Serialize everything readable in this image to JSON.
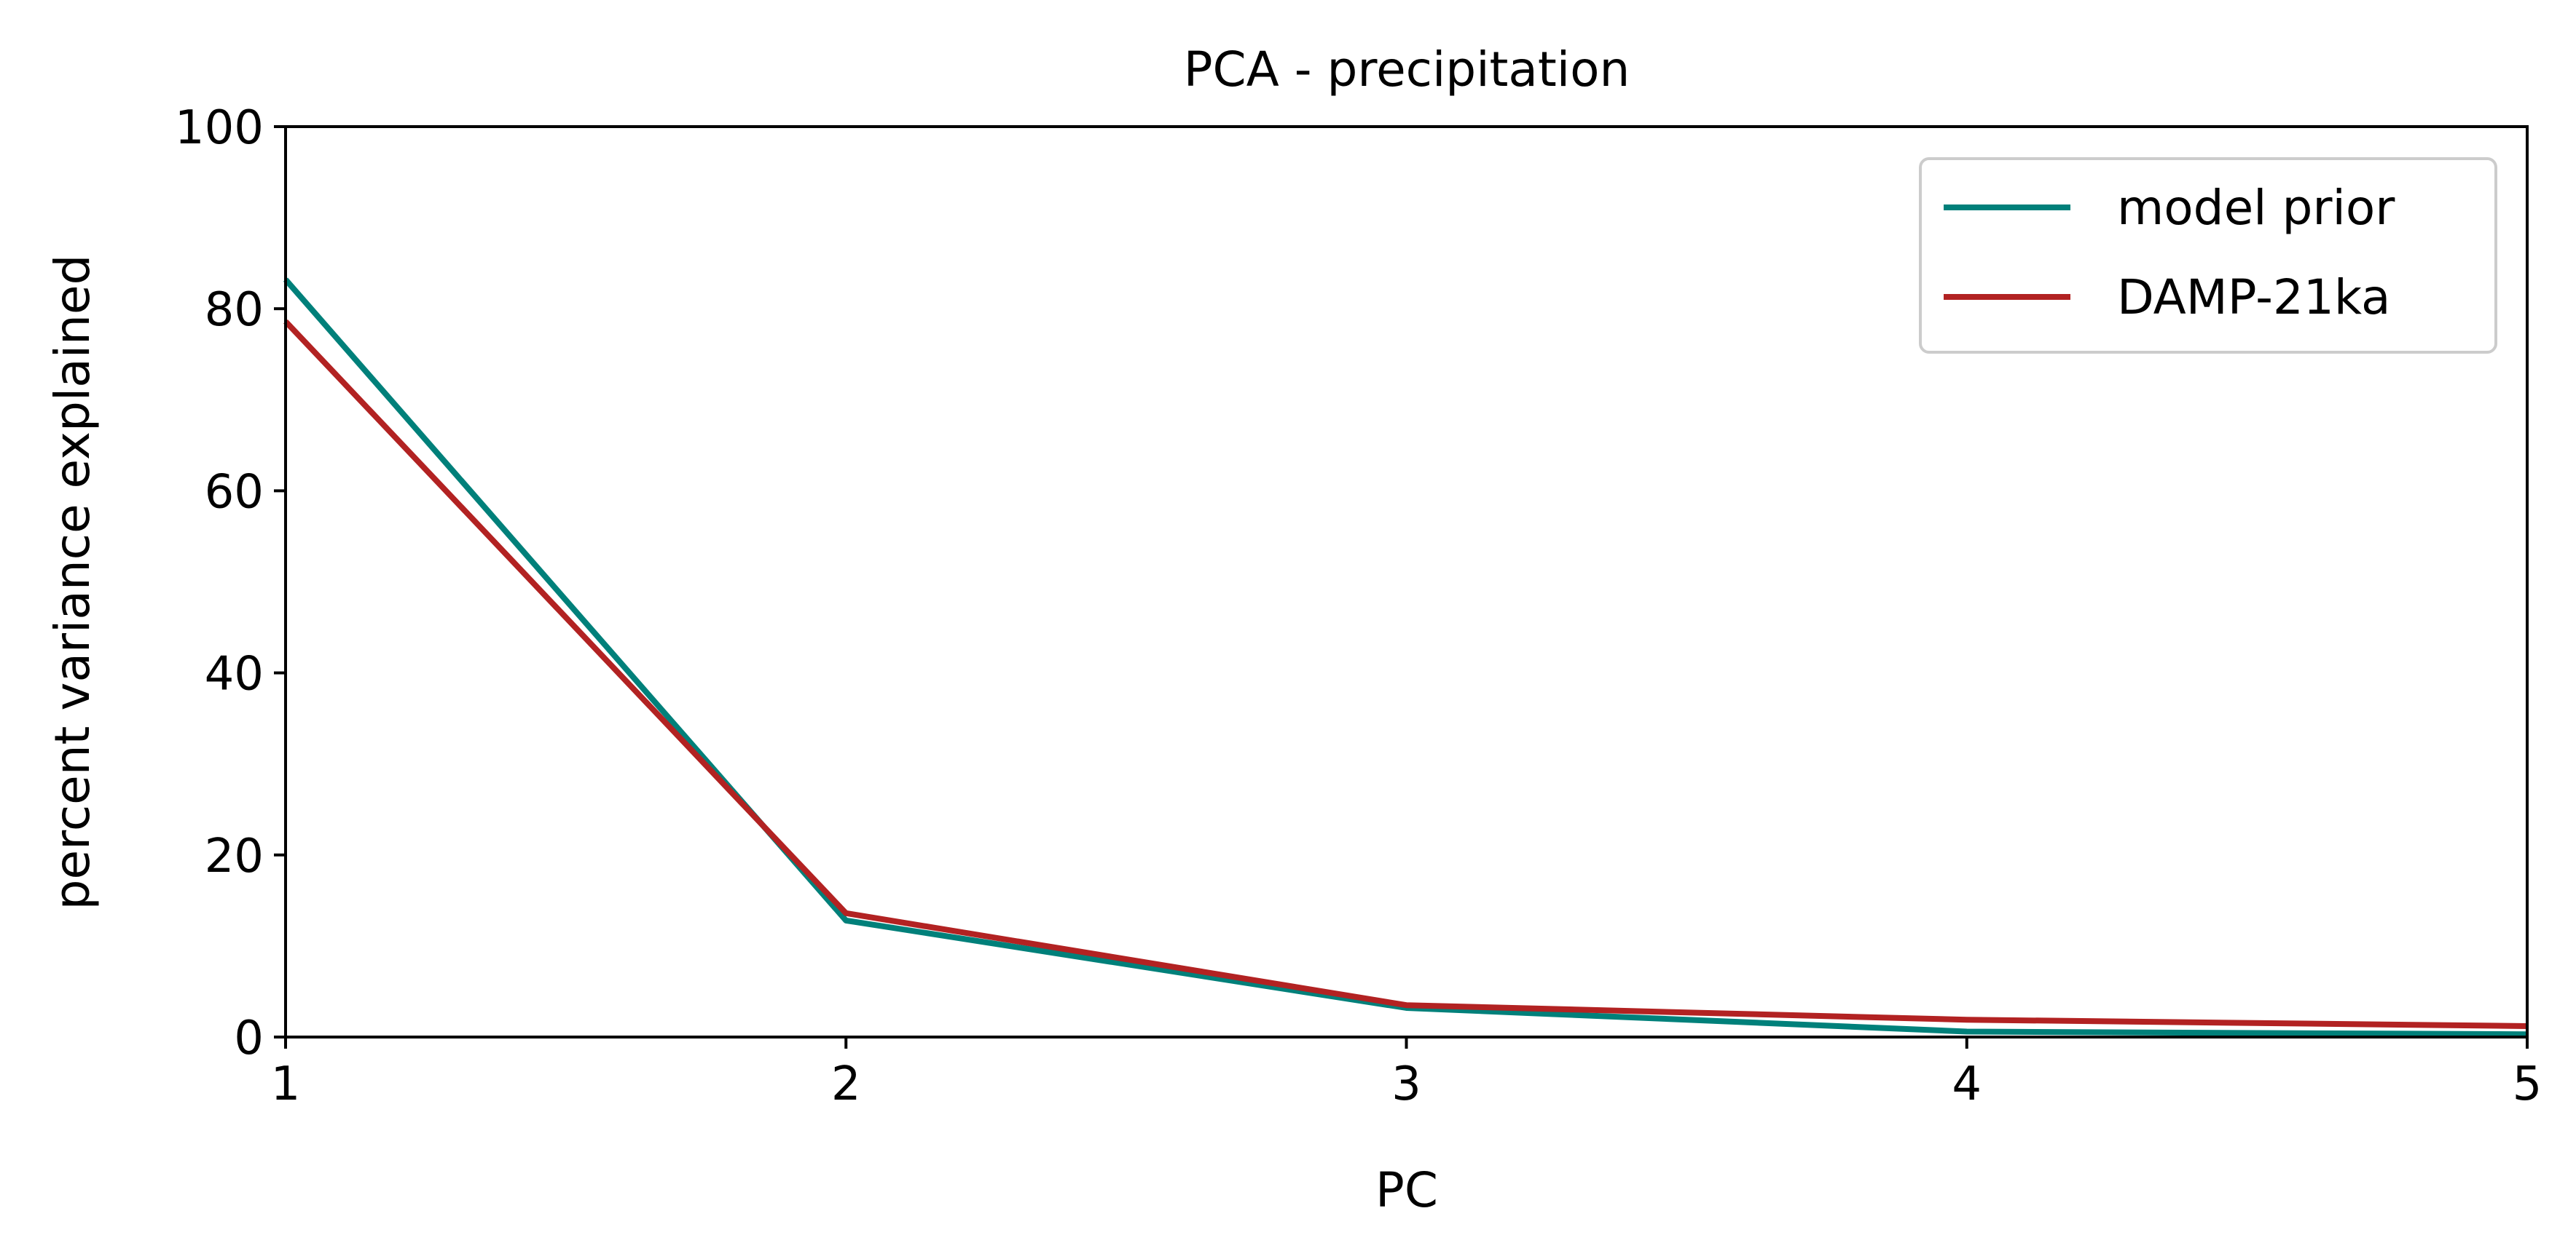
{
  "chart_data": {
    "type": "line",
    "title": "PCA - precipitation",
    "xlabel": "PC",
    "ylabel": "percent variance explained",
    "x": [
      1,
      2,
      3,
      4,
      5
    ],
    "xlim": [
      1,
      5
    ],
    "ylim": [
      0,
      100
    ],
    "x_ticks": [
      "1",
      "2",
      "3",
      "4",
      "5"
    ],
    "y_ticks": [
      "0",
      "20",
      "40",
      "60",
      "80",
      "100"
    ],
    "grid": false,
    "legend_position": "top-right",
    "series": [
      {
        "name": "model prior",
        "color": "#00807a",
        "values": [
          83.2,
          12.8,
          3.2,
          0.6,
          0.3
        ]
      },
      {
        "name": "DAMP-21ka",
        "color": "#b22222",
        "values": [
          78.6,
          13.6,
          3.5,
          1.9,
          1.2
        ]
      }
    ]
  }
}
